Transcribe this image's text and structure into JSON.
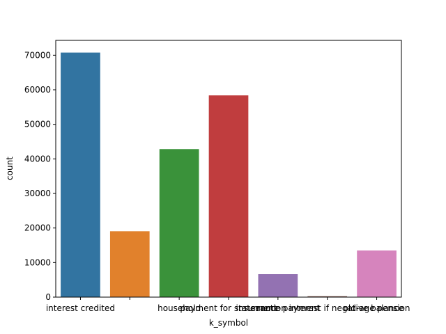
{
  "chart_data": {
    "type": "bar",
    "categories": [
      "interest credited",
      "",
      "household",
      "payment for statement",
      "insurrance payment",
      "sanction interest if negative balance",
      "old-age pension"
    ],
    "values": [
      70761,
      19065,
      42839,
      58377,
      6642,
      262,
      13502
    ],
    "colors": [
      "#3274a1",
      "#e1812c",
      "#3a923a",
      "#c03d3e",
      "#9372b2",
      "#845b53",
      "#d684bd"
    ],
    "xlabel": "k_symbol",
    "ylabel": "count",
    "ylim": [
      0,
      74300
    ],
    "yticks": [
      0,
      10000,
      20000,
      30000,
      40000,
      50000,
      60000,
      70000
    ],
    "ytick_labels": [
      "0",
      "10000",
      "20000",
      "30000",
      "40000",
      "50000",
      "60000",
      "70000"
    ],
    "grid": false
  }
}
